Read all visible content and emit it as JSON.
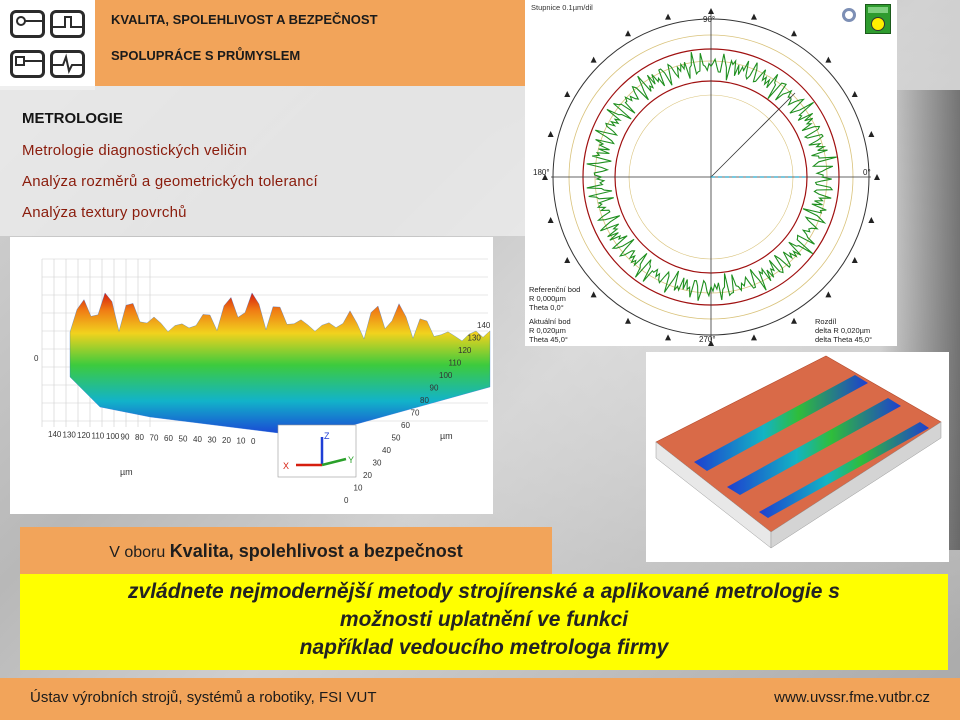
{
  "header": {
    "title_line1": "KVALITA, SPOLEHLIVOST A BEZPEČNOST",
    "title_line2": "SPOLUPRÁCE S PRŮMYSLEM"
  },
  "section": {
    "heading": "METROLOGIE",
    "items": [
      "Metrologie diagnostických veličin",
      "Analýza rozměrů a geometrických tolerancí",
      "Analýza textury povrchů"
    ]
  },
  "polar_plot": {
    "scale_label": "Stupnice 0.1µm/dil",
    "angle_top": "90°",
    "angle_left": "180°",
    "angle_right": "0°",
    "angle_bottom": "270°",
    "ref_lines": [
      "Referenční bod",
      "R 0,000µm",
      "Theta 0,0°"
    ],
    "current_lines": [
      "Aktuální bod",
      "R 0,020µm",
      "Theta 45,0°"
    ],
    "diff_lines": [
      "Rozdíl",
      "delta R 0,020µm",
      "delta Theta 45,0°"
    ]
  },
  "surface3d": {
    "unit": "µm",
    "x_ticks": [
      "140",
      "130",
      "120",
      "110",
      "100",
      "90",
      "80",
      "70",
      "60",
      "50",
      "40",
      "30",
      "20",
      "10",
      "0"
    ],
    "y_ticks": [
      "0",
      "10",
      "20",
      "30",
      "40",
      "50",
      "60",
      "70",
      "80",
      "90",
      "100",
      "110",
      "120",
      "130",
      "140"
    ],
    "z_tick": "0",
    "axis_x": "X",
    "axis_y": "Y",
    "axis_z": "Z"
  },
  "band": {
    "prefix": "V oboru ",
    "bold": "Kvalita, spolehlivost a bezpečnost"
  },
  "highlight": {
    "line1": "zvládnete nejmodernější metody strojírenské a aplikované metrologie s",
    "line2": "možnosti uplatnění ve funkci",
    "line3": "například vedoucího metrologa firmy"
  },
  "footer": {
    "left": "Ústav výrobních strojů, systémů a robotiky, FSI VUT",
    "right": "www.uvssr.fme.vutbr.cz"
  },
  "colors": {
    "orange": "#f2a45a",
    "yellow": "#ffff00",
    "accent_red": "#8a1c0c"
  }
}
